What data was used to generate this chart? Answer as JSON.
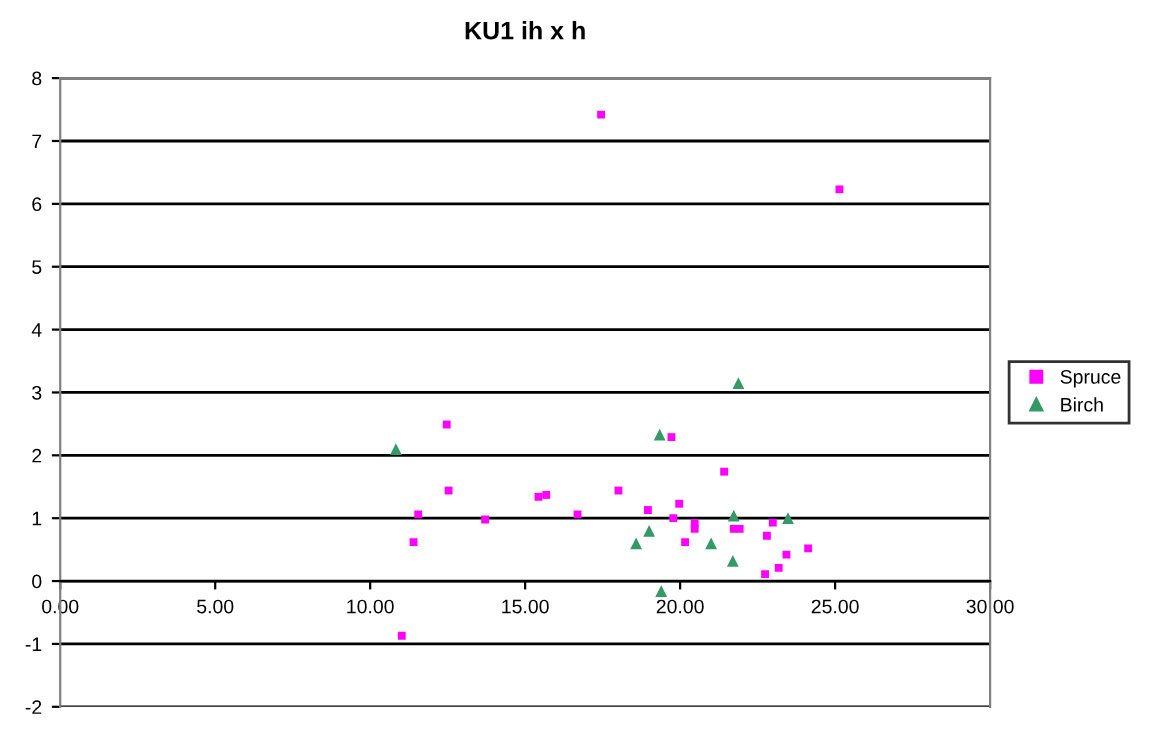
{
  "chart_data": {
    "type": "scatter",
    "title": "KU1 ih x h",
    "xlim": [
      0,
      30
    ],
    "ylim": [
      -2,
      8
    ],
    "xticks": [
      {
        "value": 0,
        "label": "0.00"
      },
      {
        "value": 5,
        "label": "5.00"
      },
      {
        "value": 10,
        "label": "10.00"
      },
      {
        "value": 15,
        "label": "15.00"
      },
      {
        "value": 20,
        "label": "20.00"
      },
      {
        "value": 25,
        "label": "25.00"
      },
      {
        "value": 30,
        "label": "30.00"
      }
    ],
    "yticks": [
      -2,
      -1,
      0,
      1,
      2,
      3,
      4,
      5,
      6,
      7,
      8
    ],
    "grid": "y",
    "legend": "right",
    "series": [
      {
        "name": "Spruce",
        "color": "#ff00ff",
        "marker": "square",
        "x": [
          12.47,
          19.72,
          21.42,
          12.53,
          15.43,
          15.68,
          18.01,
          11.55,
          16.69,
          13.71,
          18.96,
          19.97,
          19.78,
          20.47,
          20.47,
          21.73,
          21.92,
          22.99,
          22.8,
          20.16,
          11.4,
          24.13,
          23.43,
          23.18,
          22.74,
          11.02,
          17.45,
          25.14
        ],
        "values": [
          2.49,
          2.29,
          1.74,
          1.44,
          1.34,
          1.37,
          1.44,
          1.06,
          1.06,
          0.98,
          1.13,
          1.23,
          1.0,
          0.92,
          0.83,
          0.83,
          0.83,
          0.93,
          0.72,
          0.62,
          0.62,
          0.52,
          0.42,
          0.21,
          0.11,
          -0.87,
          7.42,
          6.23
        ]
      },
      {
        "name": "Birch",
        "color": "#339966",
        "marker": "triangle",
        "x": [
          21.88,
          19.34,
          10.83,
          21.73,
          23.48,
          19.0,
          18.58,
          21.0,
          21.7,
          19.39
        ],
        "values": [
          3.15,
          2.33,
          2.1,
          1.04,
          1.0,
          0.8,
          0.6,
          0.6,
          0.32,
          -0.16
        ]
      }
    ]
  }
}
